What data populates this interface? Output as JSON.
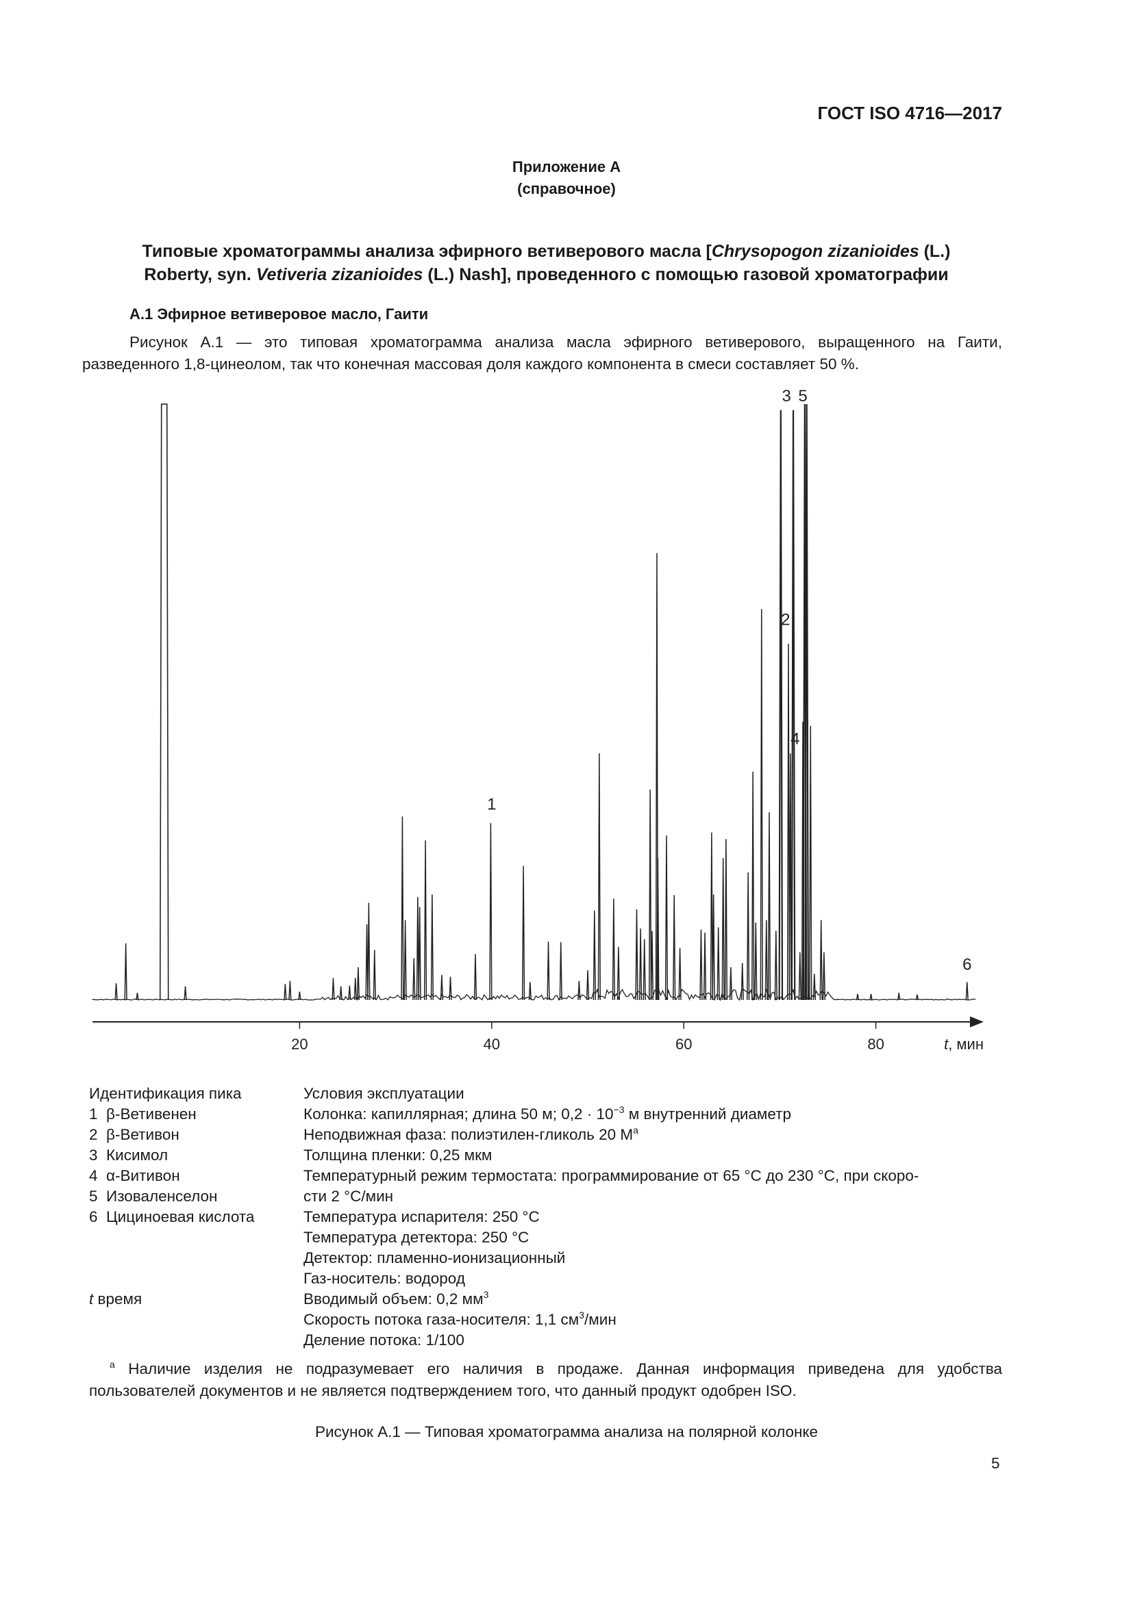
{
  "header": {
    "doc_id": "ГОСТ ISO 4716—2017"
  },
  "annex": {
    "title": "Приложение А",
    "subtitle": "(справочное)"
  },
  "main_title": {
    "line1_a": "Типовые хроматограммы анализа эфирного ветиверового масла [",
    "line1_i": "Chrysopogon zizanioides",
    "line1_b": " (L.)",
    "line2_a": "Roberty, syn. ",
    "line2_i": "Vetiveria zizanioides",
    "line2_b": " (L.) Nash], проведенного с помощью газовой хроматографии"
  },
  "section": {
    "heading": "А.1  Эфирное ветиверовое масло, Гаити"
  },
  "paragraph": {
    "line1": "Рисунок А.1 — это типовая хроматограмма анализа масла эфирного ветиверового, выращенного на Гаити,",
    "line2": "разведенного 1,8-цинеолом, так что конечная массовая доля каждого компонента в смеси составляет 50 %."
  },
  "chart_data": {
    "type": "line",
    "title": "",
    "xlabel_italic": "t",
    "xlabel_rest": ", мин",
    "ylabel": "",
    "xlim": [
      -1.6,
      90.6
    ],
    "ylim": [
      0,
      100
    ],
    "x_ticks": [
      "20",
      "40",
      "60",
      "80"
    ],
    "x_tick_values": [
      20,
      40,
      60,
      80
    ],
    "grid": false,
    "y_axis_shown": false,
    "y_unit": "relative detector response, % of plotted full scale (peaks above 100 are clipped)",
    "peaks": [
      {
        "t": 0.9,
        "h": 2.8
      },
      {
        "t": 1.9,
        "h": 9.5
      },
      {
        "t": 3.1,
        "h": 1.2
      },
      {
        "t": 5.9,
        "h": 100,
        "solvent": true
      },
      {
        "t": 8.1,
        "h": 2.3
      },
      {
        "t": 18.5,
        "h": 2.7
      },
      {
        "t": 19.0,
        "h": 3.2
      },
      {
        "t": 20.0,
        "h": 1.4
      },
      {
        "t": 23.5,
        "h": 3.7
      },
      {
        "t": 24.3,
        "h": 2.3
      },
      {
        "t": 25.2,
        "h": 2.4
      },
      {
        "t": 25.8,
        "h": 3.7
      },
      {
        "t": 26.1,
        "h": 5.5
      },
      {
        "t": 27.0,
        "h": 12.7
      },
      {
        "t": 27.2,
        "h": 16.3
      },
      {
        "t": 27.8,
        "h": 8.4
      },
      {
        "t": 30.7,
        "h": 30.8
      },
      {
        "t": 31.0,
        "h": 13.4
      },
      {
        "t": 31.9,
        "h": 7.0
      },
      {
        "t": 32.3,
        "h": 17.3
      },
      {
        "t": 32.5,
        "h": 15.6
      },
      {
        "t": 33.1,
        "h": 26.8
      },
      {
        "t": 33.8,
        "h": 17.7
      },
      {
        "t": 34.8,
        "h": 4.2
      },
      {
        "t": 35.7,
        "h": 3.9
      },
      {
        "t": 38.3,
        "h": 7.7
      },
      {
        "t": 39.9,
        "h": 29.7
      },
      {
        "t": 43.3,
        "h": 22.5
      },
      {
        "t": 44.0,
        "h": 3.0
      },
      {
        "t": 45.9,
        "h": 9.8
      },
      {
        "t": 47.2,
        "h": 9.7
      },
      {
        "t": 49.1,
        "h": 3.2
      },
      {
        "t": 50.0,
        "h": 5.0
      },
      {
        "t": 50.7,
        "h": 15.0
      },
      {
        "t": 51.2,
        "h": 41.4
      },
      {
        "t": 52.7,
        "h": 17.0
      },
      {
        "t": 53.2,
        "h": 8.9
      },
      {
        "t": 55.1,
        "h": 15.2
      },
      {
        "t": 55.5,
        "h": 12.0
      },
      {
        "t": 55.9,
        "h": 10.2
      },
      {
        "t": 56.5,
        "h": 35.3
      },
      {
        "t": 56.7,
        "h": 11.6
      },
      {
        "t": 57.2,
        "h": 75.0
      },
      {
        "t": 57.3,
        "h": 23.8
      },
      {
        "t": 58.2,
        "h": 27.6
      },
      {
        "t": 59.0,
        "h": 17.6
      },
      {
        "t": 59.6,
        "h": 8.7
      },
      {
        "t": 61.8,
        "h": 11.8
      },
      {
        "t": 62.2,
        "h": 11.3
      },
      {
        "t": 62.9,
        "h": 28.1
      },
      {
        "t": 63.1,
        "h": 17.7
      },
      {
        "t": 63.6,
        "h": 12.2
      },
      {
        "t": 64.1,
        "h": 23.8
      },
      {
        "t": 64.4,
        "h": 27.0
      },
      {
        "t": 64.9,
        "h": 5.5
      },
      {
        "t": 66.1,
        "h": 6.2
      },
      {
        "t": 66.7,
        "h": 21.4
      },
      {
        "t": 67.2,
        "h": 38.3
      },
      {
        "t": 67.5,
        "h": 13.0
      },
      {
        "t": 68.1,
        "h": 65.6
      },
      {
        "t": 68.6,
        "h": 13.4
      },
      {
        "t": 68.9,
        "h": 31.5
      },
      {
        "t": 69.6,
        "h": 11.6
      },
      {
        "t": 70.1,
        "h": 99.0
      },
      {
        "t": 70.9,
        "h": 59.8
      },
      {
        "t": 71.1,
        "h": 41.4
      },
      {
        "t": 71.4,
        "h": 99.0
      },
      {
        "t": 72.1,
        "h": 8.0
      },
      {
        "t": 72.4,
        "h": 46.7
      },
      {
        "t": 72.6,
        "h": 100
      },
      {
        "t": 72.8,
        "h": 100
      },
      {
        "t": 73.2,
        "h": 46.0
      },
      {
        "t": 73.6,
        "h": 4.4
      },
      {
        "t": 74.3,
        "h": 13.4
      },
      {
        "t": 74.6,
        "h": 8.0
      },
      {
        "t": 78.1,
        "h": 1.0
      },
      {
        "t": 79.5,
        "h": 1.0
      },
      {
        "t": 82.4,
        "h": 1.2
      },
      {
        "t": 84.3,
        "h": 0.9
      },
      {
        "t": 89.5,
        "h": 3.0
      }
    ],
    "peak_labels": [
      {
        "text": "1",
        "t": 40.0,
        "h": 31.5
      },
      {
        "text": "2",
        "t": 70.6,
        "h": 62.5
      },
      {
        "text": "3",
        "t": 70.7,
        "h": 100.5
      },
      {
        "text": "4",
        "t": 71.6,
        "h": 42.5
      },
      {
        "text": "5",
        "t": 72.4,
        "h": 100.5
      },
      {
        "text": "6",
        "t": 89.5,
        "h": 4.6
      }
    ]
  },
  "legend": {
    "left_title": "Идентификация пика",
    "peaks": [
      {
        "num": "1",
        "name": "β-Ветивенен"
      },
      {
        "num": "2",
        "name": "β-Ветивон"
      },
      {
        "num": "3",
        "name": "Кисимол"
      },
      {
        "num": "4",
        "name": "α-Витивон"
      },
      {
        "num": "5",
        "name": "Изоваленселон"
      },
      {
        "num": "6",
        "name": "Цициноевая кислота"
      }
    ],
    "t_symbol": "t",
    "t_label": " время",
    "right_title": "Условия эксплуатации",
    "cond_column_a": "Колонка: капиллярная; длина 50 м; 0,2 · 10",
    "cond_column_sup": "−3",
    "cond_column_b": " м внутренний диаметр",
    "cond_phase_a": "Неподвижная фаза: полиэтилен-гликоль 20 М",
    "cond_phase_sup": "a",
    "cond_film": "Толщина пленки: 0,25 мкм",
    "cond_temp1": "Температурный режим термостата: программирование от 65 °С до 230 °С, при скоро-",
    "cond_temp2": "сти 2 °С/мин",
    "cond_injector": "Температура испарителя: 250 °С",
    "cond_detector_temp": "Температура детектора: 250 °С",
    "cond_detector": "Детектор: пламенно-ионизационный",
    "cond_gas": "Газ-носитель: водород",
    "cond_volume_a": "Вводимый объем: 0,2 мм",
    "cond_volume_sup": "3",
    "cond_flow_a": "Скорость потока газа-носителя: 1,1 см",
    "cond_flow_sup": "3",
    "cond_flow_b": "/мин",
    "cond_split": "Деление потока: 1/100"
  },
  "footnote": {
    "mark": "a",
    "line1": " Наличие изделия не подразумевает его наличия в продаже. Данная информация приведена для удобства",
    "line2": "пользователей документов и не является подтверждением того, что данный продукт одобрен ISO."
  },
  "caption": "Рисунок А.1 — Типовая хроматограмма анализа на полярной колонке",
  "page_number": "5"
}
